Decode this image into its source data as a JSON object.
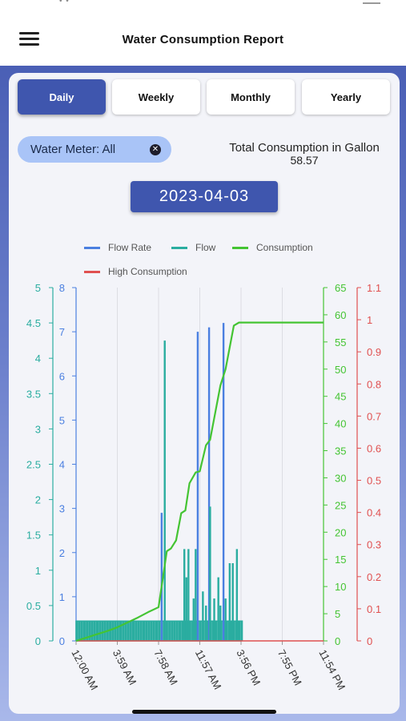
{
  "header": {
    "title": "Water Consumption Report"
  },
  "tabs": [
    {
      "label": "Daily",
      "active": true
    },
    {
      "label": "Weekly",
      "active": false
    },
    {
      "label": "Monthly",
      "active": false
    },
    {
      "label": "Yearly",
      "active": false
    }
  ],
  "filter": {
    "chip_label": "Water Meter: All",
    "clear_icon": "close-circle-icon"
  },
  "total": {
    "label": "Total Consumption in Gallon",
    "value": "58.57"
  },
  "date": "2023-04-03",
  "colors": {
    "primary": "#3f56ae",
    "flow_rate": "#4a7fe0",
    "flow": "#2aada0",
    "consumption": "#44c433",
    "high": "#e05050"
  },
  "chart_data": {
    "type": "line",
    "legend": [
      "Flow Rate",
      "Flow",
      "Consumption",
      "High Consumption"
    ],
    "x_ticks": [
      "12:00 AM",
      "3:59 AM",
      "7:58 AM",
      "11:57 AM",
      "3:56 PM",
      "7:55 PM",
      "11:54 PM"
    ],
    "x_range_hours": [
      0,
      24
    ],
    "axes": {
      "flow": {
        "ticks": [
          "0",
          "0.5",
          "1",
          "1.5",
          "2",
          "2.5",
          "3",
          "3.5",
          "4",
          "4.5",
          "5"
        ],
        "range": [
          0,
          5
        ]
      },
      "flow_rate": {
        "ticks": [
          "0",
          "1",
          "2",
          "3",
          "4",
          "5",
          "6",
          "7",
          "8"
        ],
        "range": [
          0,
          8
        ]
      },
      "consumption": {
        "ticks": [
          "0",
          "5",
          "10",
          "15",
          "20",
          "25",
          "30",
          "35",
          "40",
          "45",
          "50",
          "55",
          "60",
          "65"
        ],
        "range": [
          0,
          65
        ]
      },
      "high": {
        "ticks": [
          "0",
          "0.1",
          "0.2",
          "0.3",
          "0.4",
          "0.5",
          "0.6",
          "0.7",
          "0.8",
          "0.9",
          "1",
          "1.1"
        ],
        "range": [
          0,
          1.1
        ]
      }
    },
    "series": [
      {
        "name": "Flow Rate",
        "axis": "flow_rate",
        "spikes": [
          {
            "x": 8.3,
            "y": 2.9
          },
          {
            "x": 11.8,
            "y": 7.0
          },
          {
            "x": 12.9,
            "y": 7.1
          },
          {
            "x": 14.3,
            "y": 7.2
          }
        ]
      },
      {
        "name": "Flow",
        "axis": "flow",
        "baseline": 0.28,
        "baseline_range": [
          0,
          16.0
        ],
        "spikes": [
          {
            "x": 8.6,
            "y": 4.25
          },
          {
            "x": 10.5,
            "y": 1.3
          },
          {
            "x": 10.7,
            "y": 0.9
          },
          {
            "x": 10.9,
            "y": 1.3
          },
          {
            "x": 11.4,
            "y": 0.6
          },
          {
            "x": 11.6,
            "y": 1.3
          },
          {
            "x": 12.3,
            "y": 0.7
          },
          {
            "x": 12.6,
            "y": 0.5
          },
          {
            "x": 13.0,
            "y": 1.9
          },
          {
            "x": 13.4,
            "y": 0.6
          },
          {
            "x": 13.8,
            "y": 0.9
          },
          {
            "x": 14.0,
            "y": 0.5
          },
          {
            "x": 14.5,
            "y": 0.6
          },
          {
            "x": 14.9,
            "y": 1.1
          },
          {
            "x": 15.2,
            "y": 1.1
          },
          {
            "x": 15.6,
            "y": 1.3
          }
        ]
      },
      {
        "name": "Consumption",
        "axis": "consumption",
        "x": [
          0,
          1,
          2,
          3,
          4,
          5,
          6,
          7,
          8,
          8.8,
          9.2,
          9.7,
          10.2,
          10.6,
          11.0,
          11.6,
          12.0,
          12.6,
          13.0,
          13.5,
          14.0,
          14.5,
          14.9,
          15.3,
          15.8,
          24
        ],
        "y": [
          0,
          0.6,
          1.2,
          1.8,
          2.5,
          3.4,
          4.3,
          5.3,
          6.2,
          16.5,
          17.0,
          18.5,
          23.5,
          24.0,
          29.0,
          31.0,
          31.2,
          36.0,
          37.0,
          42.0,
          47.0,
          50.0,
          54.0,
          58.0,
          58.57,
          58.57
        ]
      },
      {
        "name": "High Consumption",
        "axis": "high",
        "x": [
          0,
          24
        ],
        "y": [
          0,
          0
        ]
      }
    ]
  }
}
